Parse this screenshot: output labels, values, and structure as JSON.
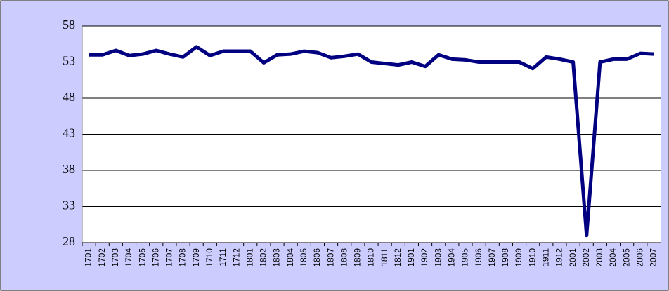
{
  "chart_data": {
    "type": "line",
    "categories": [
      "1701",
      "1702",
      "1703",
      "1704",
      "1705",
      "1706",
      "1707",
      "1708",
      "1709",
      "1710",
      "1711",
      "1712",
      "1801",
      "1802",
      "1803",
      "1804",
      "1805",
      "1806",
      "1807",
      "1808",
      "1809",
      "1810",
      "1811",
      "1812",
      "1901",
      "1902",
      "1903",
      "1904",
      "1905",
      "1906",
      "1907",
      "1908",
      "1909",
      "1910",
      "1911",
      "1912",
      "2001",
      "2002",
      "2003",
      "2004",
      "2005",
      "2006",
      "2007"
    ],
    "series": [
      {
        "color": "#000080",
        "values": [
          54.0,
          54.0,
          54.6,
          53.9,
          54.1,
          54.6,
          54.1,
          53.7,
          55.1,
          53.9,
          54.5,
          54.5,
          54.5,
          52.9,
          54.0,
          54.1,
          54.5,
          54.3,
          53.6,
          53.8,
          54.1,
          53.0,
          52.8,
          52.6,
          53.0,
          52.4,
          54.0,
          53.4,
          53.3,
          53.0,
          53.0,
          53.0,
          53.0,
          52.1,
          53.7,
          53.4,
          53.0,
          29.0,
          53.0,
          53.4,
          53.4,
          54.2,
          54.1
        ]
      }
    ],
    "ylim": [
      28,
      58
    ],
    "yticks": [
      28,
      33,
      38,
      43,
      48,
      53,
      58
    ],
    "grid": true
  }
}
